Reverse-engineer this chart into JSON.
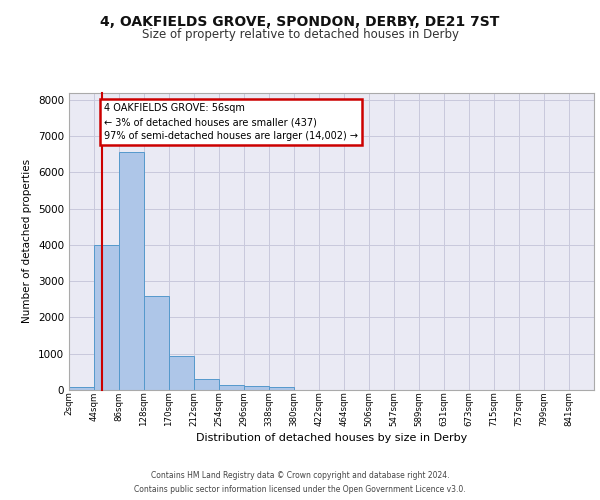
{
  "title": "4, OAKFIELDS GROVE, SPONDON, DERBY, DE21 7ST",
  "subtitle": "Size of property relative to detached houses in Derby",
  "xlabel": "Distribution of detached houses by size in Derby",
  "ylabel": "Number of detached properties",
  "bin_labels": [
    "2sqm",
    "44sqm",
    "86sqm",
    "128sqm",
    "170sqm",
    "212sqm",
    "254sqm",
    "296sqm",
    "338sqm",
    "380sqm",
    "422sqm",
    "464sqm",
    "506sqm",
    "547sqm",
    "589sqm",
    "631sqm",
    "673sqm",
    "715sqm",
    "757sqm",
    "799sqm",
    "841sqm"
  ],
  "bar_values": [
    70,
    4000,
    6550,
    2600,
    950,
    310,
    125,
    100,
    70,
    0,
    0,
    0,
    0,
    0,
    0,
    0,
    0,
    0,
    0,
    0,
    0
  ],
  "bar_color": "#aec6e8",
  "bar_edge_color": "#5599cc",
  "grid_color": "#c8c8dc",
  "background_color": "#eaeaf4",
  "ylim_max": 8200,
  "yticks": [
    0,
    1000,
    2000,
    3000,
    4000,
    5000,
    6000,
    7000,
    8000
  ],
  "property_line_x": 1.3,
  "annotation_text": "4 OAKFIELDS GROVE: 56sqm\n← 3% of detached houses are smaller (437)\n97% of semi-detached houses are larger (14,002) →",
  "annotation_box_facecolor": "#ffffff",
  "annotation_box_edgecolor": "#cc0000",
  "property_line_color": "#cc0000",
  "footer_line1": "Contains HM Land Registry data © Crown copyright and database right 2024.",
  "footer_line2": "Contains public sector information licensed under the Open Government Licence v3.0."
}
